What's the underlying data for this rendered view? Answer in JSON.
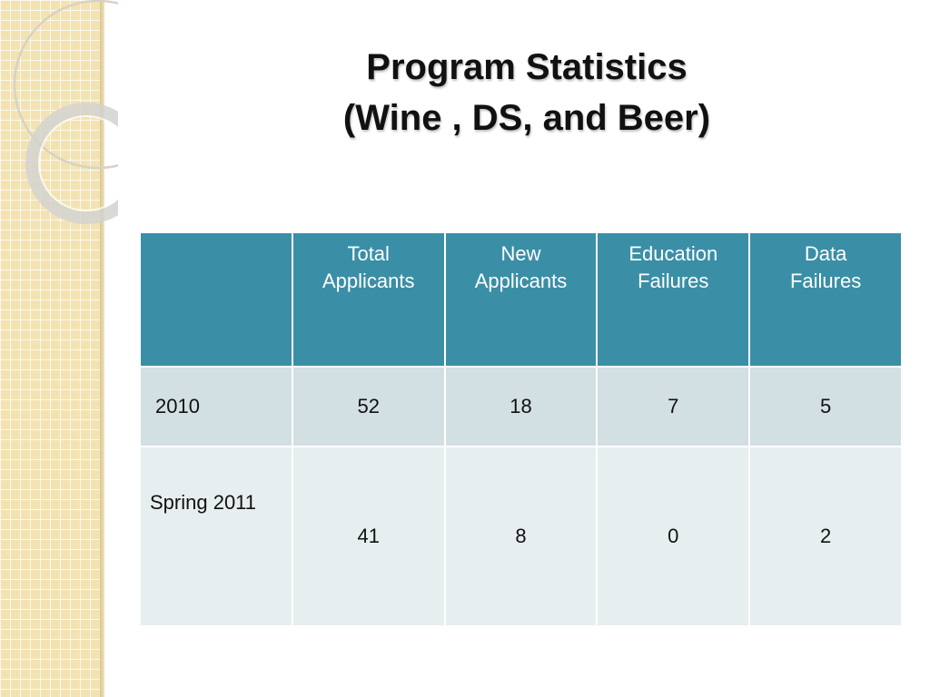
{
  "slide": {
    "title_line1": "Program Statistics",
    "title_line2": "(Wine , DS, and Beer)"
  },
  "table": {
    "headers": [
      "",
      [
        "Total",
        "Applicants"
      ],
      [
        "New",
        "Applicants"
      ],
      [
        "Education",
        "Failures"
      ],
      [
        "Data",
        "Failures"
      ]
    ],
    "rows": [
      {
        "label": "2010",
        "values": [
          "52",
          "18",
          "7",
          "5"
        ]
      },
      {
        "label": "Spring 2011",
        "values": [
          "41",
          "8",
          "0",
          "2"
        ]
      }
    ]
  },
  "colors": {
    "header_bg": "#3a8fa6",
    "row_dark": "#d2dfe3",
    "row_light": "#e7eef0",
    "side_strip": "#f3e3b3"
  }
}
